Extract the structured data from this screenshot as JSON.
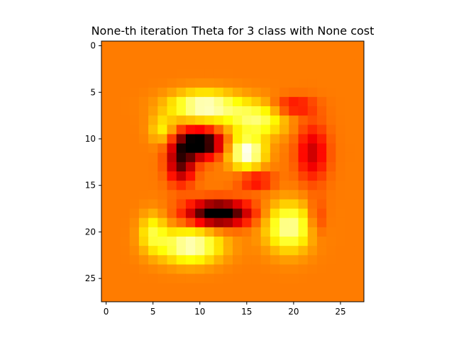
{
  "chart_data": {
    "type": "heatmap",
    "title": "None-th iteration Theta for 3 class with None cost",
    "xlabel": "",
    "ylabel": "",
    "colormap": "hot",
    "xlim": [
      -0.5,
      27.5
    ],
    "ylim": [
      27.5,
      -0.5
    ],
    "x_ticks": [
      0,
      5,
      10,
      15,
      20,
      25
    ],
    "y_ticks": [
      0,
      5,
      10,
      15,
      20,
      25
    ],
    "grid": false,
    "rows": 28,
    "cols": 28,
    "background_value": 0.55,
    "value_range": [
      0,
      1
    ],
    "blobs": [
      {
        "cx": 10.5,
        "cy": 6.5,
        "sx": 3.6,
        "sy": 1.5,
        "a": 0.42
      },
      {
        "cx": 16.0,
        "cy": 8.0,
        "sx": 3.0,
        "sy": 1.8,
        "a": 0.3
      },
      {
        "cx": 15.0,
        "cy": 11.5,
        "sx": 1.8,
        "sy": 1.6,
        "a": 0.46
      },
      {
        "cx": 9.0,
        "cy": 21.5,
        "sx": 3.2,
        "sy": 1.8,
        "a": 0.4
      },
      {
        "cx": 19.5,
        "cy": 19.5,
        "sx": 2.4,
        "sy": 2.5,
        "a": 0.36
      },
      {
        "cx": 5.0,
        "cy": 20.0,
        "sx": 1.4,
        "sy": 2.0,
        "a": 0.22
      },
      {
        "cx": 6.0,
        "cy": 9.0,
        "sx": 1.3,
        "sy": 1.5,
        "a": 0.18
      },
      {
        "cx": 10.0,
        "cy": 10.5,
        "sx": 2.2,
        "sy": 1.4,
        "a": -0.66
      },
      {
        "cx": 8.0,
        "cy": 12.5,
        "sx": 1.4,
        "sy": 2.2,
        "a": -0.42
      },
      {
        "cx": 12.0,
        "cy": 18.0,
        "sx": 3.2,
        "sy": 1.3,
        "a": -0.62
      },
      {
        "cx": 22.0,
        "cy": 11.5,
        "sx": 1.6,
        "sy": 3.0,
        "a": -0.26
      },
      {
        "cx": 20.0,
        "cy": 6.5,
        "sx": 2.2,
        "sy": 1.0,
        "a": -0.2
      },
      {
        "cx": 16.0,
        "cy": 14.5,
        "sx": 1.8,
        "sy": 1.0,
        "a": -0.2
      },
      {
        "cx": 22.5,
        "cy": 18.5,
        "sx": 1.0,
        "sy": 2.0,
        "a": -0.12
      }
    ]
  }
}
